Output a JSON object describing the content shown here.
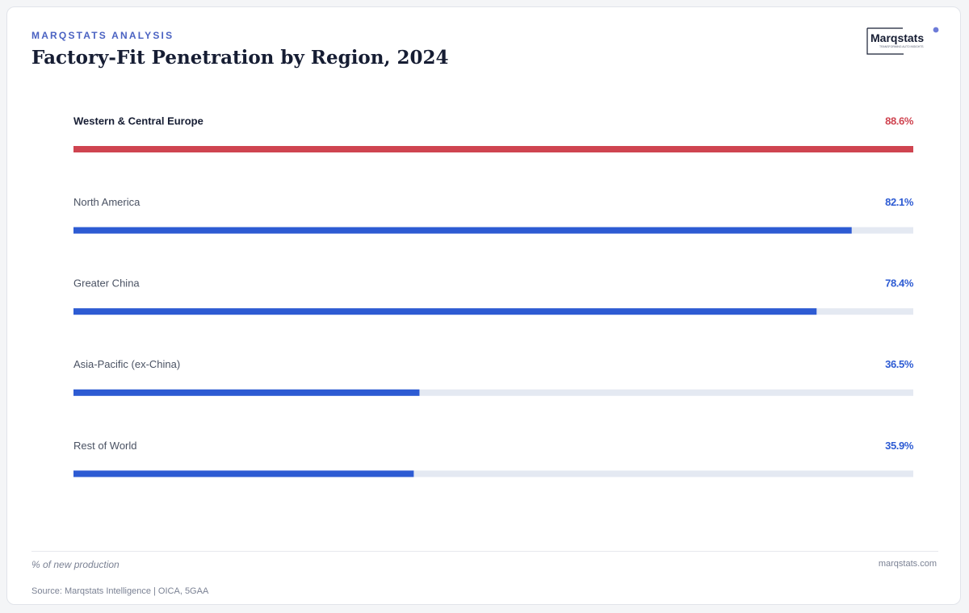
{
  "header": {
    "kicker": "MARQSTATS ANALYSIS",
    "title": "Factory-Fit Penetration by Region, 2024"
  },
  "logo": {
    "wordmark": "Marqstats",
    "tagline": "TRANSFORMING AUTO INSIGHTS"
  },
  "colors": {
    "highlight": "#cf4450",
    "bar": "#2d5bd3",
    "track": "#e4e9f2",
    "label": "#4a5263",
    "label_highlight": "#161d33"
  },
  "chart_data": {
    "type": "bar",
    "orientation": "horizontal",
    "title": "Factory-Fit Penetration by Region, 2024",
    "unit": "% of new production",
    "xlim": [
      0,
      88.6
    ],
    "categories": [
      "Western & Central Europe",
      "North America",
      "Greater China",
      "Asia-Pacific (ex-China)",
      "Rest of World"
    ],
    "values": [
      88.6,
      82.1,
      78.4,
      36.5,
      35.9
    ],
    "value_labels": [
      "88.6%",
      "82.1%",
      "78.4%",
      "36.5%",
      "35.9%"
    ],
    "highlight_index": 0,
    "grid": false,
    "legend": "none"
  },
  "footer": {
    "unit_note": "% of new production",
    "site": "marqstats.com",
    "source": "Source: Marqstats Intelligence | OICA, 5GAA"
  }
}
